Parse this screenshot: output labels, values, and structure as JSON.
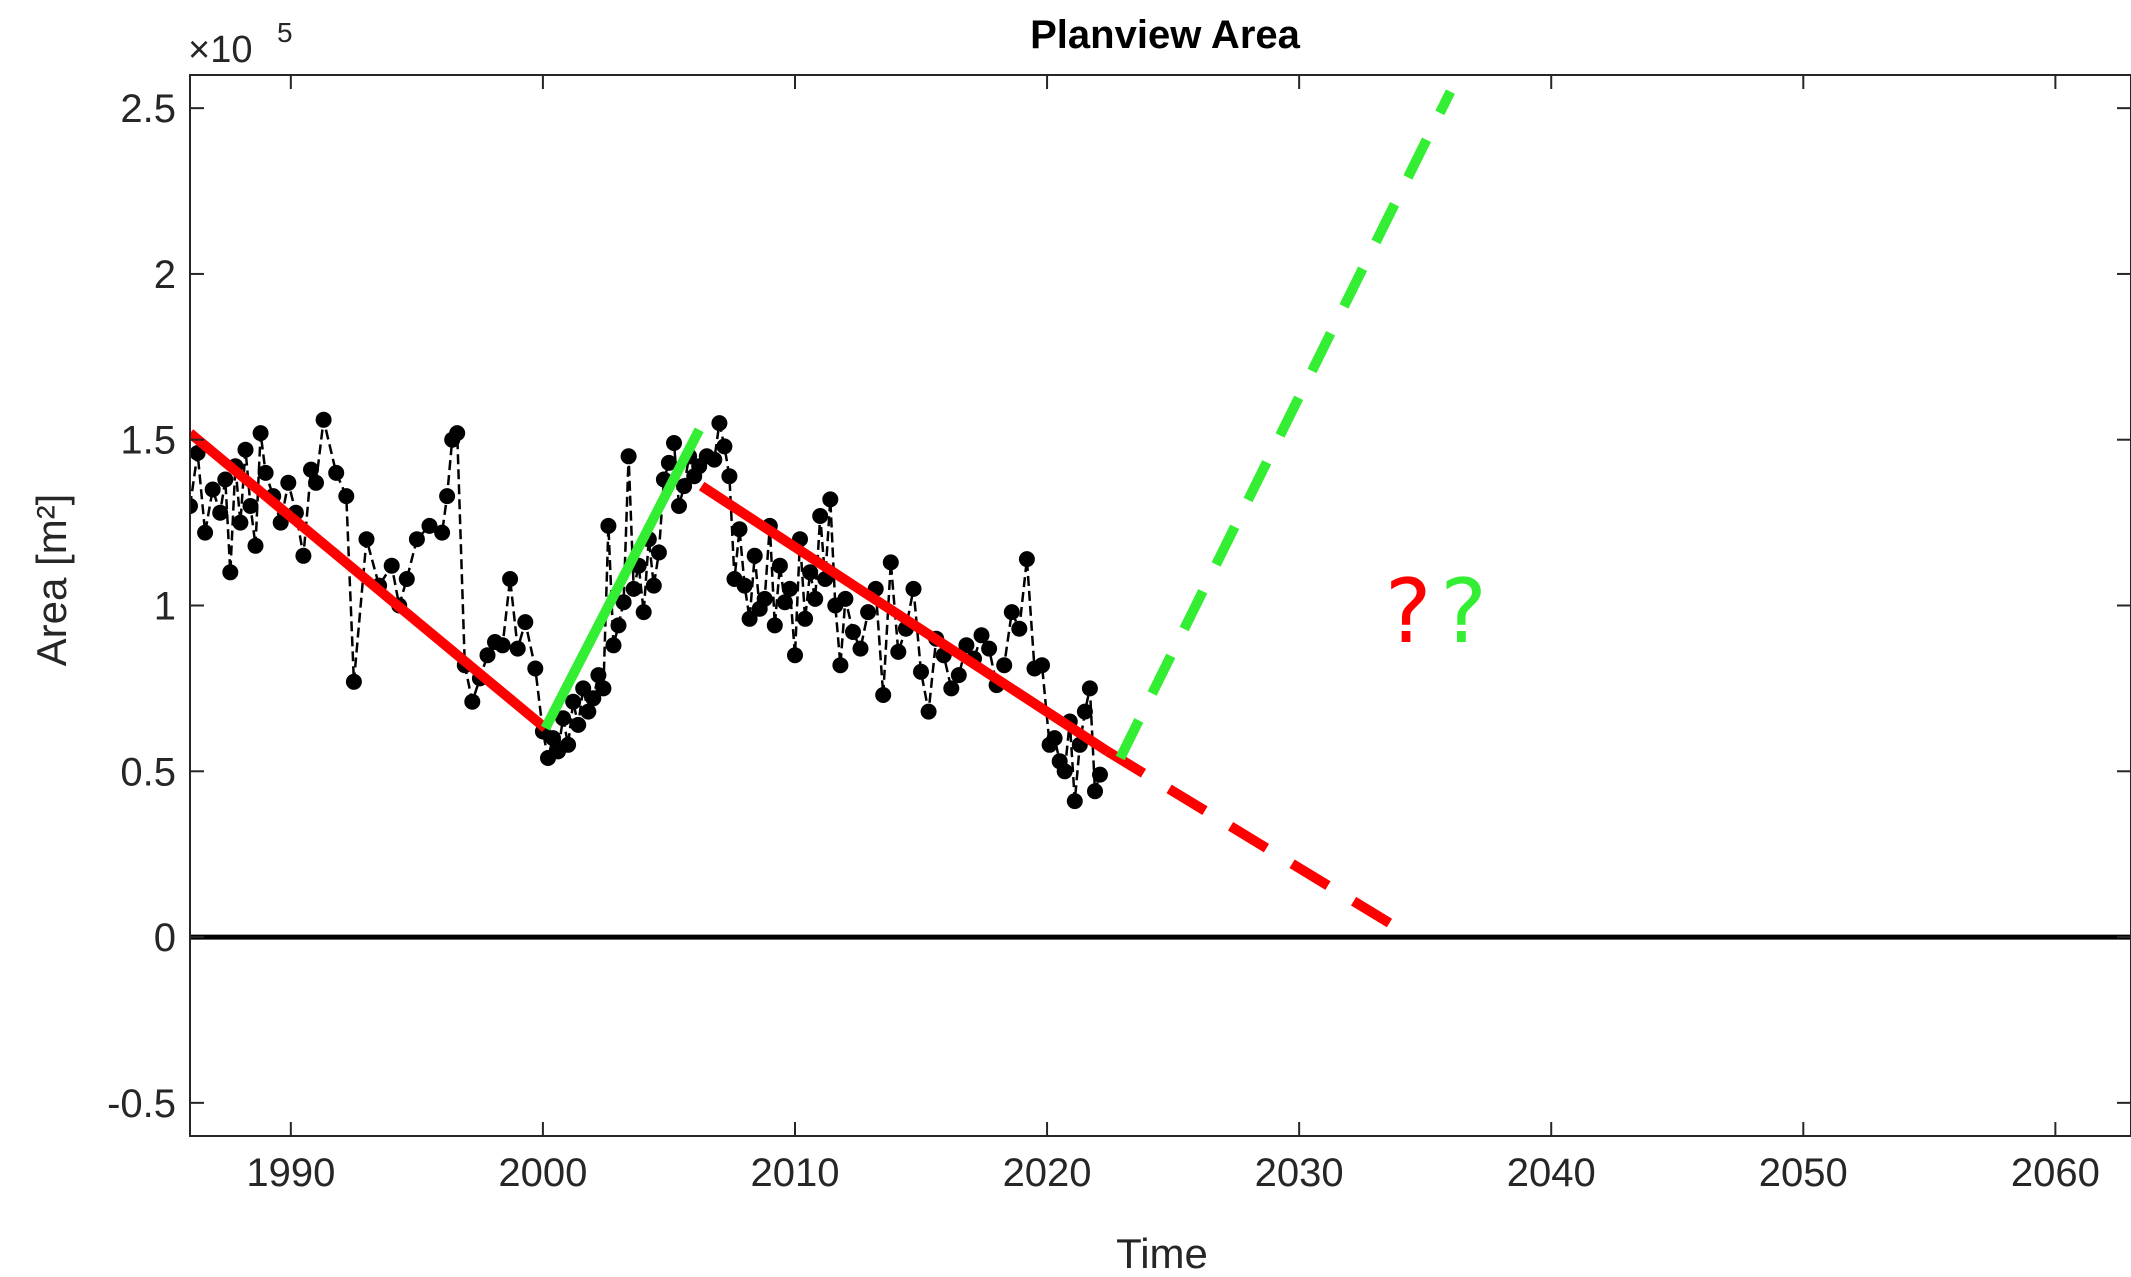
{
  "chart_data": {
    "type": "line",
    "title": "Planview Area",
    "xlabel": "Time",
    "ylabel": "Area [m²]",
    "y_multiplier_label": "×10",
    "y_multiplier_exponent": "5",
    "xlim": [
      1986,
      2063
    ],
    "ylim": [
      -0.6,
      2.6
    ],
    "x_ticks": [
      1990,
      2000,
      2010,
      2020,
      2030,
      2040,
      2050,
      2060
    ],
    "x_tick_labels": [
      "1990",
      "2000",
      "2010",
      "2020",
      "2030",
      "2040",
      "2050",
      "2060"
    ],
    "y_ticks": [
      -0.5,
      0,
      0.5,
      1,
      1.5,
      2,
      2.5
    ],
    "y_tick_labels": [
      "-0.5",
      "0",
      "0.5",
      "1",
      "1.5",
      "2",
      "2.5"
    ],
    "grid": false,
    "series": [
      {
        "style": "dashed-line-with-dot-markers",
        "color": "#000000",
        "x": [
          1986.0,
          1986.3,
          1986.6,
          1986.9,
          1987.2,
          1987.4,
          1987.6,
          1987.8,
          1988.0,
          1988.2,
          1988.4,
          1988.6,
          1988.8,
          1989.0,
          1989.3,
          1989.6,
          1989.9,
          1990.2,
          1990.5,
          1990.8,
          1991.0,
          1991.3,
          1991.8,
          1992.2,
          1992.5,
          1993.0,
          1993.5,
          1994.0,
          1994.3,
          1994.6,
          1995.0,
          1995.5,
          1996.0,
          1996.2,
          1996.4,
          1996.6,
          1996.9,
          1997.2,
          1997.5,
          1997.8,
          1998.1,
          1998.4,
          1998.7,
          1999.0,
          1999.3,
          1999.7,
          2000.0,
          2000.2,
          2000.4,
          2000.6,
          2000.8,
          2001.0,
          2001.2,
          2001.4,
          2001.6,
          2001.8,
          2002.0,
          2002.2,
          2002.4,
          2002.6,
          2002.8,
          2003.0,
          2003.2,
          2003.4,
          2003.6,
          2003.8,
          2004.0,
          2004.2,
          2004.4,
          2004.6,
          2004.8,
          2005.0,
          2005.2,
          2005.4,
          2005.6,
          2005.8,
          2006.0,
          2006.2,
          2006.5,
          2006.8,
          2007.0,
          2007.2,
          2007.4,
          2007.6,
          2007.8,
          2008.0,
          2008.2,
          2008.4,
          2008.6,
          2008.8,
          2009.0,
          2009.2,
          2009.4,
          2009.6,
          2009.8,
          2010.0,
          2010.2,
          2010.4,
          2010.6,
          2010.8,
          2011.0,
          2011.2,
          2011.4,
          2011.6,
          2011.8,
          2012.0,
          2012.3,
          2012.6,
          2012.9,
          2013.2,
          2013.5,
          2013.8,
          2014.1,
          2014.4,
          2014.7,
          2015.0,
          2015.3,
          2015.6,
          2015.9,
          2016.2,
          2016.5,
          2016.8,
          2017.1,
          2017.4,
          2017.7,
          2018.0,
          2018.3,
          2018.6,
          2018.9,
          2019.2,
          2019.5,
          2019.8,
          2020.1,
          2020.3,
          2020.5,
          2020.7,
          2020.9,
          2021.1,
          2021.3,
          2021.5,
          2021.7,
          2021.9,
          2022.1
        ],
        "y": [
          1.3,
          1.46,
          1.22,
          1.35,
          1.28,
          1.38,
          1.1,
          1.42,
          1.25,
          1.47,
          1.3,
          1.18,
          1.52,
          1.4,
          1.33,
          1.25,
          1.37,
          1.28,
          1.15,
          1.41,
          1.37,
          1.56,
          1.4,
          1.33,
          0.77,
          1.2,
          1.06,
          1.12,
          1.0,
          1.08,
          1.2,
          1.24,
          1.22,
          1.33,
          1.5,
          1.52,
          0.82,
          0.71,
          0.78,
          0.85,
          0.89,
          0.88,
          1.08,
          0.87,
          0.95,
          0.81,
          0.62,
          0.54,
          0.6,
          0.56,
          0.66,
          0.58,
          0.71,
          0.64,
          0.75,
          0.68,
          0.72,
          0.79,
          0.75,
          1.24,
          0.88,
          0.94,
          1.01,
          1.45,
          1.05,
          1.12,
          0.98,
          1.2,
          1.06,
          1.16,
          1.38,
          1.43,
          1.49,
          1.3,
          1.36,
          1.45,
          1.39,
          1.42,
          1.45,
          1.44,
          1.55,
          1.48,
          1.39,
          1.08,
          1.23,
          1.06,
          0.96,
          1.15,
          0.99,
          1.02,
          1.24,
          0.94,
          1.12,
          1.01,
          1.05,
          0.85,
          1.2,
          0.96,
          1.1,
          1.02,
          1.27,
          1.08,
          1.32,
          1.0,
          0.82,
          1.02,
          0.92,
          0.87,
          0.98,
          1.05,
          0.73,
          1.13,
          0.86,
          0.93,
          1.05,
          0.8,
          0.68,
          0.9,
          0.85,
          0.75,
          0.79,
          0.88,
          0.84,
          0.91,
          0.87,
          0.76,
          0.82,
          0.98,
          0.93,
          1.14,
          0.81,
          0.82,
          0.58,
          0.6,
          0.53,
          0.5,
          0.65,
          0.41,
          0.58,
          0.68,
          0.75,
          0.44,
          0.49
        ]
      },
      {
        "name": "",
        "style": "solid",
        "color": "#ff0000",
        "x": [
          1986.0,
          2000.1
        ],
        "y": [
          1.52,
          0.63
        ]
      },
      {
        "name": "",
        "style": "solid",
        "color": "#33ee33",
        "x": [
          2000.1,
          2006.2
        ],
        "y": [
          0.63,
          1.53
        ]
      },
      {
        "name": "",
        "style": "solid",
        "color": "#ff0000",
        "x": [
          2006.3,
          2022.4
        ],
        "y": [
          1.36,
          0.56
        ]
      },
      {
        "name": "",
        "style": "dashed",
        "color": "#ff0000",
        "x": [
          2022.4,
          2034.5
        ],
        "y": [
          0.56,
          0.0
        ]
      },
      {
        "name": "",
        "style": "dashed",
        "color": "#33ee33",
        "x": [
          2022.9,
          2036.0
        ],
        "y": [
          0.54,
          2.55
        ]
      },
      {
        "name": "",
        "style": "solid-baseline",
        "color": "#000000",
        "x": [
          1986.0,
          2063.0
        ],
        "y": [
          0.0,
          0.0
        ]
      }
    ],
    "annotations": [
      {
        "text": "?",
        "x": 2033.4,
        "y": 0.98,
        "color": "#ff0000"
      },
      {
        "text": "?",
        "x": 2035.6,
        "y": 0.98,
        "color": "#33ee33"
      }
    ]
  }
}
